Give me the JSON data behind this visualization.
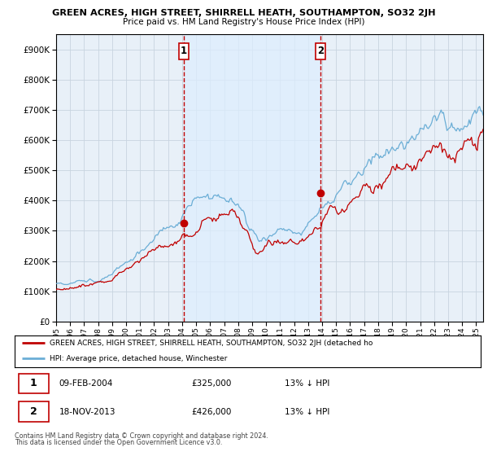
{
  "title": "GREEN ACRES, HIGH STREET, SHIRRELL HEATH, SOUTHAMPTON, SO32 2JH",
  "subtitle": "Price paid vs. HM Land Registry's House Price Index (HPI)",
  "legend_line1": "GREEN ACRES, HIGH STREET, SHIRRELL HEATH, SOUTHAMPTON, SO32 2JH (detached ho",
  "legend_line2": "HPI: Average price, detached house, Winchester",
  "footnote1": "Contains HM Land Registry data © Crown copyright and database right 2024.",
  "footnote2": "This data is licensed under the Open Government Licence v3.0.",
  "marker1_date": "09-FEB-2004",
  "marker1_price": "£325,000",
  "marker1_hpi": "13% ↓ HPI",
  "marker2_date": "18-NOV-2013",
  "marker2_price": "£426,000",
  "marker2_hpi": "13% ↓ HPI",
  "ylim": [
    0,
    950000
  ],
  "yticks": [
    0,
    100000,
    200000,
    300000,
    400000,
    500000,
    600000,
    700000,
    800000,
    900000
  ],
  "ytick_labels": [
    "£0",
    "£100K",
    "£200K",
    "£300K",
    "£400K",
    "£500K",
    "£600K",
    "£700K",
    "£800K",
    "£900K"
  ],
  "hpi_color": "#6baed6",
  "price_color": "#c00000",
  "marker_color": "#c00000",
  "shade_color": "#ddeeff",
  "bg_color": "#ffffff",
  "chart_bg": "#e8f0f8",
  "grid_color": "#c8d4e0",
  "xmin": 1995,
  "xmax": 2025.5,
  "xticks": [
    1995,
    1996,
    1997,
    1998,
    1999,
    2000,
    2001,
    2002,
    2003,
    2004,
    2005,
    2006,
    2007,
    2008,
    2009,
    2010,
    2011,
    2012,
    2013,
    2014,
    2015,
    2016,
    2017,
    2018,
    2019,
    2020,
    2021,
    2022,
    2023,
    2024,
    2025
  ],
  "marker1_x": 2004.1,
  "marker1_y": 325000,
  "marker2_x": 2013.9,
  "marker2_y": 426000
}
